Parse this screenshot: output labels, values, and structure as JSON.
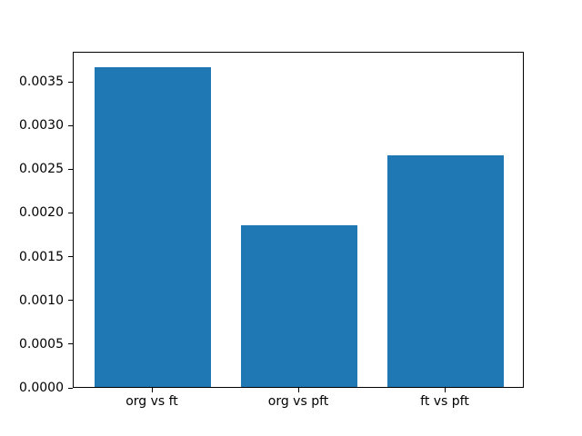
{
  "figure": {
    "background_color": "#ffffff",
    "frame_color": "#000000",
    "tick_color": "#000000",
    "text_color": "#000000"
  },
  "chart_data": {
    "type": "bar",
    "title": "",
    "xlabel": "",
    "ylabel": "",
    "categories": [
      "org vs ft",
      "org vs pft",
      "ft vs pft"
    ],
    "values": [
      0.00366,
      0.00185,
      0.00265
    ],
    "bar_color": "#1f77b4",
    "bar_width": 0.8,
    "xlim": [
      -0.54,
      2.54
    ],
    "ylim": [
      0,
      0.003843
    ],
    "ytick_values": [
      0.0,
      0.0005,
      0.001,
      0.0015,
      0.002,
      0.0025,
      0.003,
      0.0035
    ],
    "ytick_labels": [
      "0.0000",
      "0.0005",
      "0.0010",
      "0.0015",
      "0.0020",
      "0.0025",
      "0.0030",
      "0.0035"
    ],
    "grid": false,
    "legend": "none"
  }
}
